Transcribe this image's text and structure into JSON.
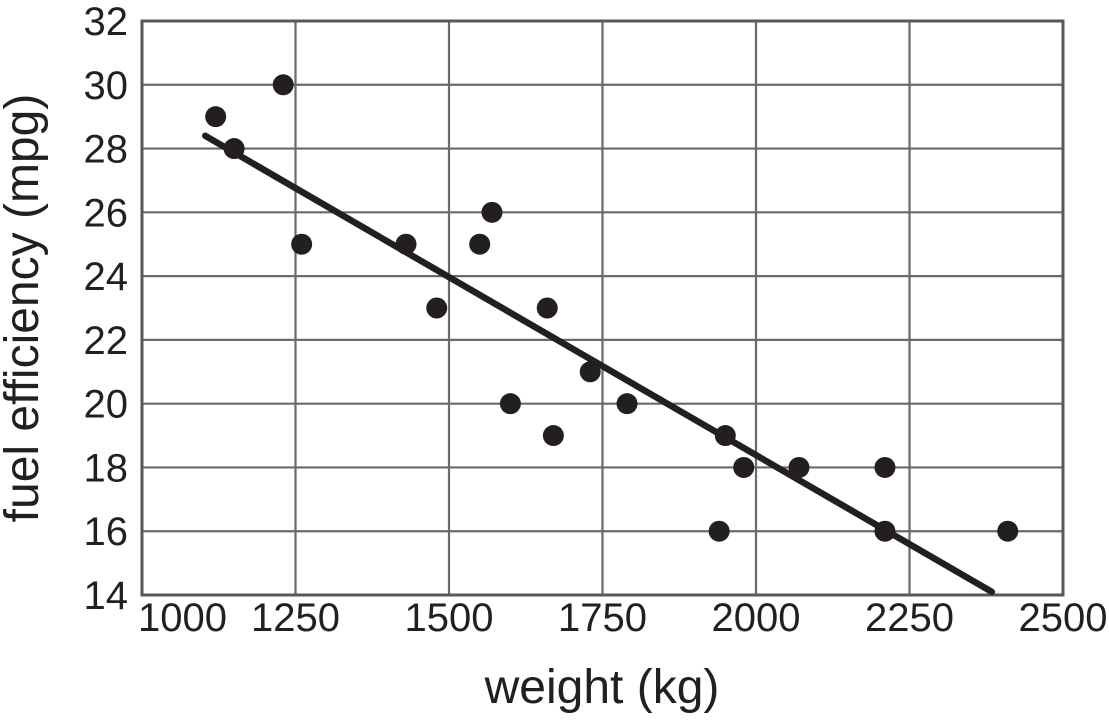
{
  "chart_data": {
    "type": "scatter",
    "title": "",
    "xlabel": "weight (kg)",
    "ylabel": "fuel efficiency (mpg)",
    "xlim": [
      1000,
      2500
    ],
    "ylim": [
      14,
      32
    ],
    "xticks": [
      1000,
      1250,
      1500,
      1750,
      2000,
      2250,
      2500
    ],
    "yticks": [
      14,
      16,
      18,
      20,
      22,
      24,
      26,
      28,
      30,
      32
    ],
    "grid": true,
    "legend_position": "none",
    "points": [
      {
        "weight_kg": 1120,
        "mpg": 29
      },
      {
        "weight_kg": 1150,
        "mpg": 28
      },
      {
        "weight_kg": 1230,
        "mpg": 30
      },
      {
        "weight_kg": 1260,
        "mpg": 25
      },
      {
        "weight_kg": 1430,
        "mpg": 25
      },
      {
        "weight_kg": 1480,
        "mpg": 23
      },
      {
        "weight_kg": 1550,
        "mpg": 25
      },
      {
        "weight_kg": 1570,
        "mpg": 26
      },
      {
        "weight_kg": 1600,
        "mpg": 20
      },
      {
        "weight_kg": 1660,
        "mpg": 23
      },
      {
        "weight_kg": 1670,
        "mpg": 19
      },
      {
        "weight_kg": 1730,
        "mpg": 21
      },
      {
        "weight_kg": 1790,
        "mpg": 20
      },
      {
        "weight_kg": 1940,
        "mpg": 16
      },
      {
        "weight_kg": 1950,
        "mpg": 19
      },
      {
        "weight_kg": 1980,
        "mpg": 18
      },
      {
        "weight_kg": 2070,
        "mpg": 18
      },
      {
        "weight_kg": 2210,
        "mpg": 16
      },
      {
        "weight_kg": 2210,
        "mpg": 18
      },
      {
        "weight_kg": 2410,
        "mpg": 16
      }
    ],
    "trend_line": {
      "x1": 1103,
      "y1": 28.4,
      "x2": 2384,
      "y2": 14.1
    },
    "colors": {
      "point": "#231f20",
      "trend_line": "#231f20",
      "gridline": "#6a6a6a",
      "border": "#58585a",
      "text": "#231f20",
      "background": "#ffffff"
    }
  }
}
